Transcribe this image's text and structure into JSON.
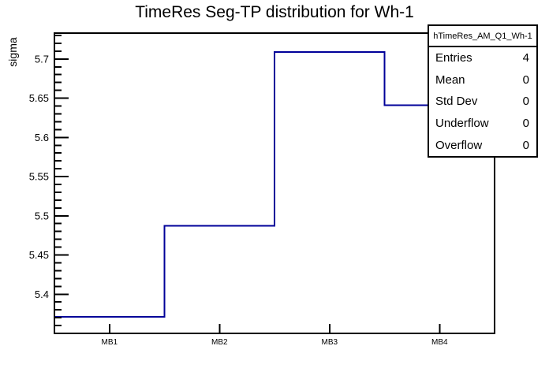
{
  "title": "TimeRes Seg-TP distribution for Wh-1",
  "y_axis_label": "sigma",
  "stats_box": {
    "header": "hTimeRes_AM_Q1_Wh-1",
    "rows": [
      {
        "label": "Entries",
        "value": "4"
      },
      {
        "label": "Mean",
        "value": "0"
      },
      {
        "label": "Std Dev",
        "value": "0"
      },
      {
        "label": "Underflow",
        "value": "0"
      },
      {
        "label": "Overflow",
        "value": "0"
      }
    ]
  },
  "chart_data": {
    "type": "line",
    "subtype": "step-histogram",
    "title": "TimeRes Seg-TP distribution for Wh-1",
    "xlabel": "",
    "ylabel": "sigma",
    "categories": [
      "MB1",
      "MB2",
      "MB3",
      "MB4"
    ],
    "values": [
      5.371,
      5.487,
      5.709,
      5.641
    ],
    "ylim": [
      5.35,
      5.733
    ],
    "y_major_step": 0.05,
    "y_minor_step": 0.01,
    "yticks": [
      {
        "value": 5.4,
        "label": "5.4"
      },
      {
        "value": 5.45,
        "label": "5.45"
      },
      {
        "value": 5.5,
        "label": "5.5"
      },
      {
        "value": 5.55,
        "label": "5.55"
      },
      {
        "value": 5.6,
        "label": "5.6"
      },
      {
        "value": 5.65,
        "label": "5.65"
      },
      {
        "value": 5.7,
        "label": "5.7"
      }
    ],
    "grid": false,
    "legend": false,
    "line_color": "#000099",
    "frame_color": "#000000",
    "background_color": "#ffffff"
  }
}
